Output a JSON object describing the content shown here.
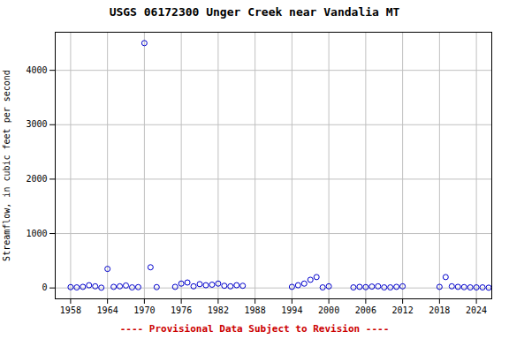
{
  "chart_data": {
    "type": "scatter",
    "title": "USGS 06172300 Unger Creek near Vandalia MT",
    "ylabel": "Streamflow, in cubic feet per second",
    "xlabel": "---- Provisional Data Subject to Revision ----",
    "x": [
      1958,
      1959,
      1960,
      1961,
      1962,
      1963,
      1964,
      1965,
      1966,
      1967,
      1968,
      1969,
      1970,
      1971,
      1972,
      1975,
      1976,
      1977,
      1978,
      1979,
      1980,
      1981,
      1982,
      1983,
      1984,
      1985,
      1986,
      1994,
      1995,
      1996,
      1997,
      1998,
      1999,
      2000,
      2004,
      2005,
      2006,
      2007,
      2008,
      2009,
      2010,
      2011,
      2012,
      2018,
      2019,
      2020,
      2021,
      2022,
      2023,
      2024,
      2025,
      2026
    ],
    "values": [
      15,
      10,
      20,
      50,
      30,
      5,
      350,
      20,
      30,
      45,
      10,
      15,
      4500,
      380,
      15,
      20,
      80,
      100,
      30,
      70,
      50,
      60,
      80,
      40,
      30,
      50,
      40,
      20,
      50,
      80,
      150,
      200,
      10,
      30,
      10,
      20,
      15,
      25,
      30,
      10,
      10,
      20,
      30,
      20,
      200,
      30,
      20,
      15,
      10,
      10,
      10,
      5
    ],
    "color": "#0000cc",
    "marker": "circle",
    "xlim": [
      1955.5,
      2026.5
    ],
    "ylim": [
      -200,
      4700
    ],
    "xticks": [
      1958,
      1964,
      1970,
      1976,
      1982,
      1988,
      1994,
      2000,
      2006,
      2012,
      2018,
      2024
    ],
    "yticks": [
      0,
      1000,
      2000,
      3000,
      4000
    ],
    "grid": true
  }
}
